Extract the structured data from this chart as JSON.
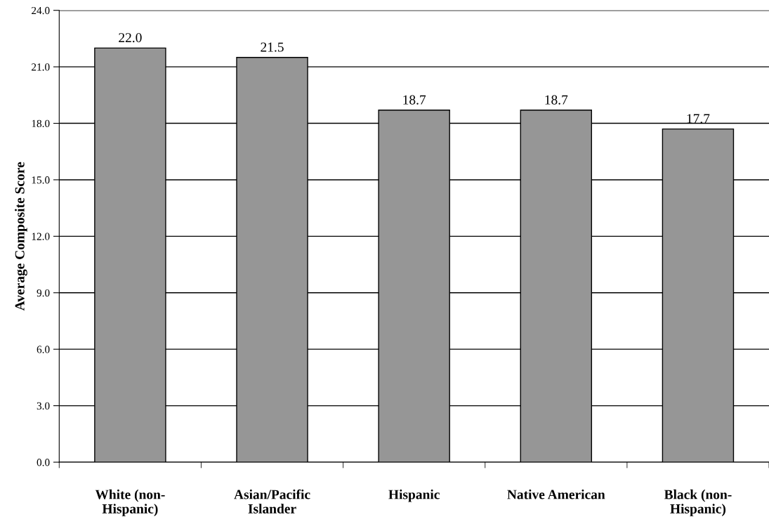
{
  "chart_data": {
    "type": "bar",
    "ylabel": "Average Composite Score",
    "categories": [
      "White (non-\nHispanic)",
      "Asian/Pacific\nIslander",
      "Hispanic",
      "Native American",
      "Black (non-\nHispanic)"
    ],
    "values": [
      22.0,
      21.5,
      18.7,
      18.7,
      17.7
    ],
    "color": "#969696",
    "value_labels": [
      "22.0",
      "21.5",
      "18.7",
      "18.7",
      "17.7"
    ],
    "ylim": [
      0,
      24
    ],
    "yticks": [
      {
        "value": 0,
        "label": "0.0"
      },
      {
        "value": 3,
        "label": "3.0"
      },
      {
        "value": 6,
        "label": "6.0"
      },
      {
        "value": 9,
        "label": "9.0"
      },
      {
        "value": 12,
        "label": "12.0"
      },
      {
        "value": 15,
        "label": "15.0"
      },
      {
        "value": 18,
        "label": "18.0"
      },
      {
        "value": 21,
        "label": "21.0"
      },
      {
        "value": 24,
        "label": "24.0"
      }
    ],
    "grid": "y",
    "legend": false
  }
}
